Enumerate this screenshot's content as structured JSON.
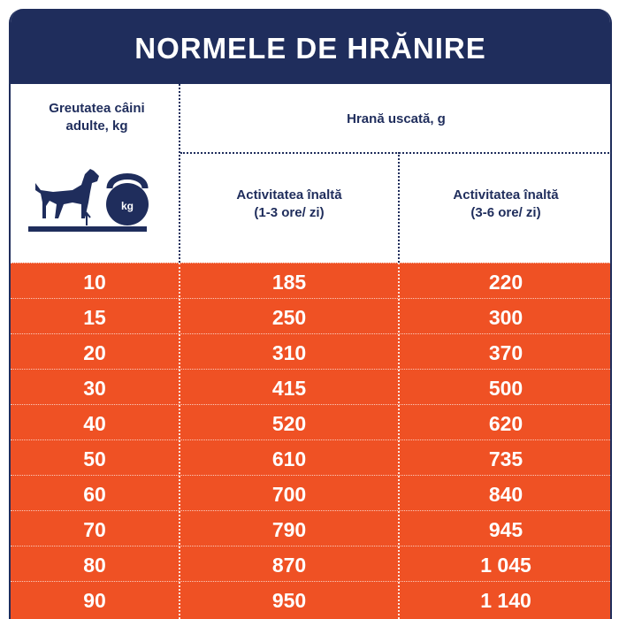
{
  "title": "NORMELE DE HRĂNIRE",
  "header": {
    "weight_col": "Greutatea câini adulte, kg",
    "dry_food": "Hrană uscată, g",
    "activity_1": "Activitatea înaltă\n(1-3 ore/ zi)",
    "activity_2": "Activitatea înaltă\n(3-6 ore/ zi)",
    "kettlebell_label": "kg"
  },
  "colors": {
    "navy": "#1f2d5c",
    "orange": "#ef5124"
  },
  "icons": [
    "dog-icon",
    "kettlebell-icon",
    "scale-arrow-icon"
  ],
  "rows": [
    {
      "weight": "10",
      "a1": "185",
      "a2": "220"
    },
    {
      "weight": "15",
      "a1": "250",
      "a2": "300"
    },
    {
      "weight": "20",
      "a1": "310",
      "a2": "370"
    },
    {
      "weight": "30",
      "a1": "415",
      "a2": "500"
    },
    {
      "weight": "40",
      "a1": "520",
      "a2": "620"
    },
    {
      "weight": "50",
      "a1": "610",
      "a2": "735"
    },
    {
      "weight": "60",
      "a1": "700",
      "a2": "840"
    },
    {
      "weight": "70",
      "a1": "790",
      "a2": "945"
    },
    {
      "weight": "80",
      "a1": "870",
      "a2": "1 045"
    },
    {
      "weight": "90",
      "a1": "950",
      "a2": "1 140"
    }
  ]
}
